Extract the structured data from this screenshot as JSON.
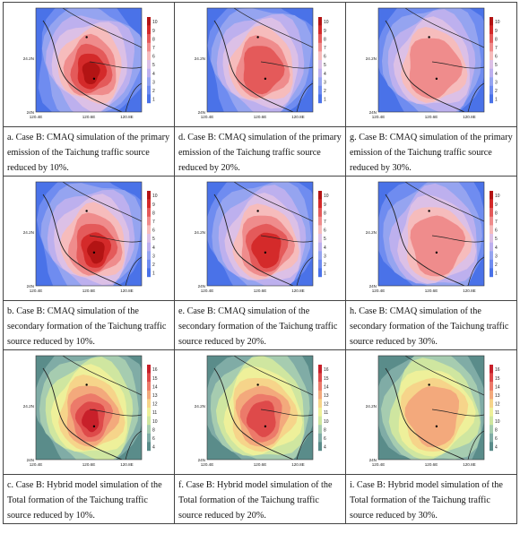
{
  "figure": {
    "rows": [
      {
        "scheme": "cmaq",
        "ticks": [
          "10",
          "9",
          "8",
          "7",
          "6",
          "5",
          "4",
          "3",
          "2",
          "1"
        ],
        "panels": [
          {
            "caption": "a. Case B: CMAQ simulation of the primary emission of the Taichung traffic source reduced by 10%.",
            "intensity": 1.0
          },
          {
            "caption": "d. Case B: CMAQ simulation of the primary emission of the Taichung traffic source reduced by 20%.",
            "intensity": 0.82
          },
          {
            "caption": "g. Case B: CMAQ simulation of the primary emission of the Taichung traffic source reduced by 30%.",
            "intensity": 0.62
          }
        ]
      },
      {
        "scheme": "cmaq",
        "ticks": [
          "10",
          "9",
          "8",
          "7",
          "6",
          "5",
          "4",
          "3",
          "2",
          "1"
        ],
        "panels": [
          {
            "caption": "b. Case B: CMAQ simulation of the secondary formation of the Taichung traffic source reduced by 10%.",
            "intensity": 1.0
          },
          {
            "caption": "e. Case B: CMAQ simulation of the secondary formation of the Taichung traffic source reduced by 20%.",
            "intensity": 0.85
          },
          {
            "caption": "h. Case B: CMAQ simulation of the secondary formation of the Taichung traffic source reduced by 30%.",
            "intensity": 0.72
          }
        ]
      },
      {
        "scheme": "hybrid",
        "ticks": [
          "16",
          "15",
          "14",
          "13",
          "12",
          "11",
          "10",
          "8",
          "6",
          "4"
        ],
        "panels": [
          {
            "caption": "c. Case B: Hybrid model simulation of the Total formation of the Taichung traffic source reduced by 10%.",
            "intensity": 1.0
          },
          {
            "caption": "f. Case B: Hybrid model simulation of the Total formation of the Taichung traffic source reduced by 20%.",
            "intensity": 0.85
          },
          {
            "caption": "i. Case B: Hybrid model simulation of the Total formation of the Taichung traffic source reduced by 30%.",
            "intensity": 0.7
          }
        ]
      }
    ],
    "axis": {
      "y_upper": "24.2N",
      "y_lower": "24N",
      "x_left": "120.4E",
      "x_mid": "120.6E",
      "x_right": "120.8E"
    },
    "colors": {
      "cmaq": [
        "#b31414",
        "#d42a2a",
        "#e45a5a",
        "#ef8c8c",
        "#f6bcbc",
        "#dcc0e6",
        "#bdb0ee",
        "#95a4f0",
        "#6f8cf0",
        "#4a72e8"
      ],
      "hybrid": [
        "#c8202a",
        "#de4a4a",
        "#ec7a6a",
        "#f3a97c",
        "#f6d48a",
        "#eef09a",
        "#cfe6a0",
        "#a6ccb0",
        "#80aca6",
        "#5a8c8a"
      ]
    }
  }
}
